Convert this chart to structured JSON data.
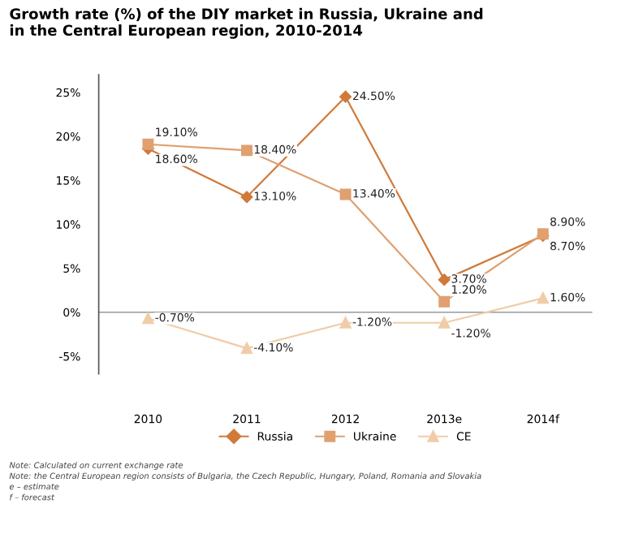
{
  "chart_data": {
    "type": "line",
    "title": "Growth rate (%) of the DIY market in Russia, Ukraine and\nin the Central European region, 2010-2014",
    "categories": [
      "2010",
      "2011",
      "2012",
      "2013e",
      "2014f"
    ],
    "series": [
      {
        "name": "Russia",
        "color": "#d07a3a",
        "marker": "diamond",
        "values": [
          18.6,
          13.1,
          24.5,
          3.7,
          8.7
        ],
        "value_labels": [
          "18.60%",
          "13.10%",
          "24.50%",
          "3.70%",
          "8.70%"
        ]
      },
      {
        "name": "Ukraine",
        "color": "#e0a070",
        "marker": "square",
        "values": [
          19.1,
          18.4,
          13.4,
          1.2,
          8.9
        ],
        "value_labels": [
          "19.10%",
          "18.40%",
          "13.40%",
          "1.20%",
          "8.90%"
        ]
      },
      {
        "name": "CE",
        "color": "#f0cca8",
        "marker": "triangle",
        "values": [
          -0.7,
          -4.1,
          -1.2,
          -1.2,
          1.6
        ],
        "value_labels": [
          "-0.70%",
          "-4.10%",
          "-1.20%",
          "-1.20%",
          "1.60%"
        ]
      }
    ],
    "ylim": [
      -7,
      27
    ],
    "yticks": [
      {
        "value": -5,
        "label": "-5%"
      },
      {
        "value": 0,
        "label": "0%"
      },
      {
        "value": 5,
        "label": "5%"
      },
      {
        "value": 10,
        "label": "10%"
      },
      {
        "value": 15,
        "label": "15%"
      },
      {
        "value": 20,
        "label": "20%"
      },
      {
        "value": 25,
        "label": "25%"
      }
    ],
    "ref_lines": [
      {
        "axis": "y",
        "value": 0,
        "color": "#999999"
      }
    ],
    "grid": false,
    "legend": "bottom",
    "line_style": "solid",
    "annotations": [
      "Note: Calculated on current exchange rate",
      "Note: the Central European region consists of Bulgaria, the Czech Republic, Hungary, Poland, Romania and Slovakia",
      "e – estimate",
      "f – forecast"
    ]
  }
}
